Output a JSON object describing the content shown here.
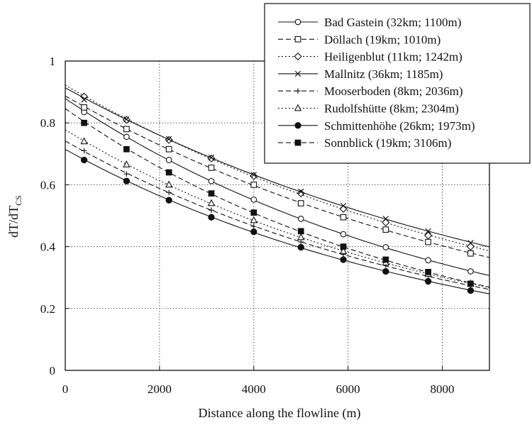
{
  "chart_data": {
    "type": "line",
    "xlabel": "Distance along the flowline (m)",
    "ylabel_main": "dT/dT",
    "ylabel_sub": "CS",
    "xlim": [
      0,
      9000
    ],
    "ylim": [
      0,
      1
    ],
    "xticks": [
      0,
      2000,
      4000,
      6000,
      8000
    ],
    "yticks": [
      0,
      0.2,
      0.4,
      0.6,
      0.8,
      1
    ],
    "ytick_labels": [
      "0",
      "0.2",
      "0.4",
      "0.6",
      "0.8",
      "1"
    ],
    "grid": true,
    "legend_position": "top-right",
    "series": [
      {
        "name": "Bad Gastein (32km; 1100m)",
        "line_style": "solid",
        "marker": "open-circle",
        "x": [
          400,
          1300,
          2200,
          3100,
          4000,
          5000,
          5900,
          6800,
          7700,
          8600
        ],
        "y": [
          0.835,
          0.755,
          0.68,
          0.612,
          0.552,
          0.49,
          0.44,
          0.398,
          0.356,
          0.32
        ]
      },
      {
        "name": "Döllach (19km; 1010m)",
        "line_style": "dashed",
        "marker": "open-square",
        "x": [
          400,
          1300,
          2200,
          3100,
          4000,
          5000,
          5900,
          6800,
          7700,
          8600
        ],
        "y": [
          0.85,
          0.78,
          0.715,
          0.655,
          0.6,
          0.54,
          0.495,
          0.455,
          0.415,
          0.378
        ]
      },
      {
        "name": "Heiligenblut (11km; 1242m)",
        "line_style": "dotted",
        "marker": "open-diamond",
        "x": [
          400,
          1300,
          2200,
          3100,
          4000,
          5000,
          5900,
          6800,
          7700,
          8600
        ],
        "y": [
          0.885,
          0.81,
          0.745,
          0.685,
          0.628,
          0.572,
          0.522,
          0.478,
          0.436,
          0.4
        ]
      },
      {
        "name": "Mallnitz (36km; 1185m)",
        "line_style": "solid",
        "marker": "x",
        "x": [
          400,
          1300,
          2200,
          3100,
          4000,
          5000,
          5900,
          6800,
          7700,
          8600
        ],
        "y": [
          0.875,
          0.812,
          0.748,
          0.688,
          0.632,
          0.578,
          0.532,
          0.49,
          0.45,
          0.412
        ]
      },
      {
        "name": "Mooserboden (8km; 2036m)",
        "line_style": "dashed",
        "marker": "plus",
        "x": [
          400,
          1300,
          2200,
          3100,
          4000,
          5000,
          5900,
          6800,
          7700,
          8600
        ],
        "y": [
          0.71,
          0.635,
          0.575,
          0.518,
          0.465,
          0.415,
          0.375,
          0.34,
          0.305,
          0.272
        ]
      },
      {
        "name": "Rudolfshütte (8km; 2304m)",
        "line_style": "dotted",
        "marker": "open-triangle",
        "x": [
          400,
          1300,
          2200,
          3100,
          4000,
          5000,
          5900,
          6800,
          7700,
          8600
        ],
        "y": [
          0.74,
          0.665,
          0.6,
          0.54,
          0.485,
          0.43,
          0.385,
          0.348,
          0.312,
          0.28
        ]
      },
      {
        "name": "Schmittenhöhe (26km; 1973m)",
        "line_style": "solid",
        "marker": "filled-circle",
        "x": [
          400,
          1300,
          2200,
          3100,
          4000,
          5000,
          5900,
          6800,
          7700,
          8600
        ],
        "y": [
          0.68,
          0.612,
          0.55,
          0.495,
          0.448,
          0.398,
          0.358,
          0.32,
          0.288,
          0.258
        ]
      },
      {
        "name": "Sonnblick (19km; 3106m)",
        "line_style": "dashed",
        "marker": "filled-square",
        "x": [
          400,
          1300,
          2200,
          3100,
          4000,
          5000,
          5900,
          6800,
          7700,
          8600
        ],
        "y": [
          0.8,
          0.715,
          0.64,
          0.572,
          0.51,
          0.45,
          0.4,
          0.358,
          0.318,
          0.28
        ]
      }
    ]
  }
}
